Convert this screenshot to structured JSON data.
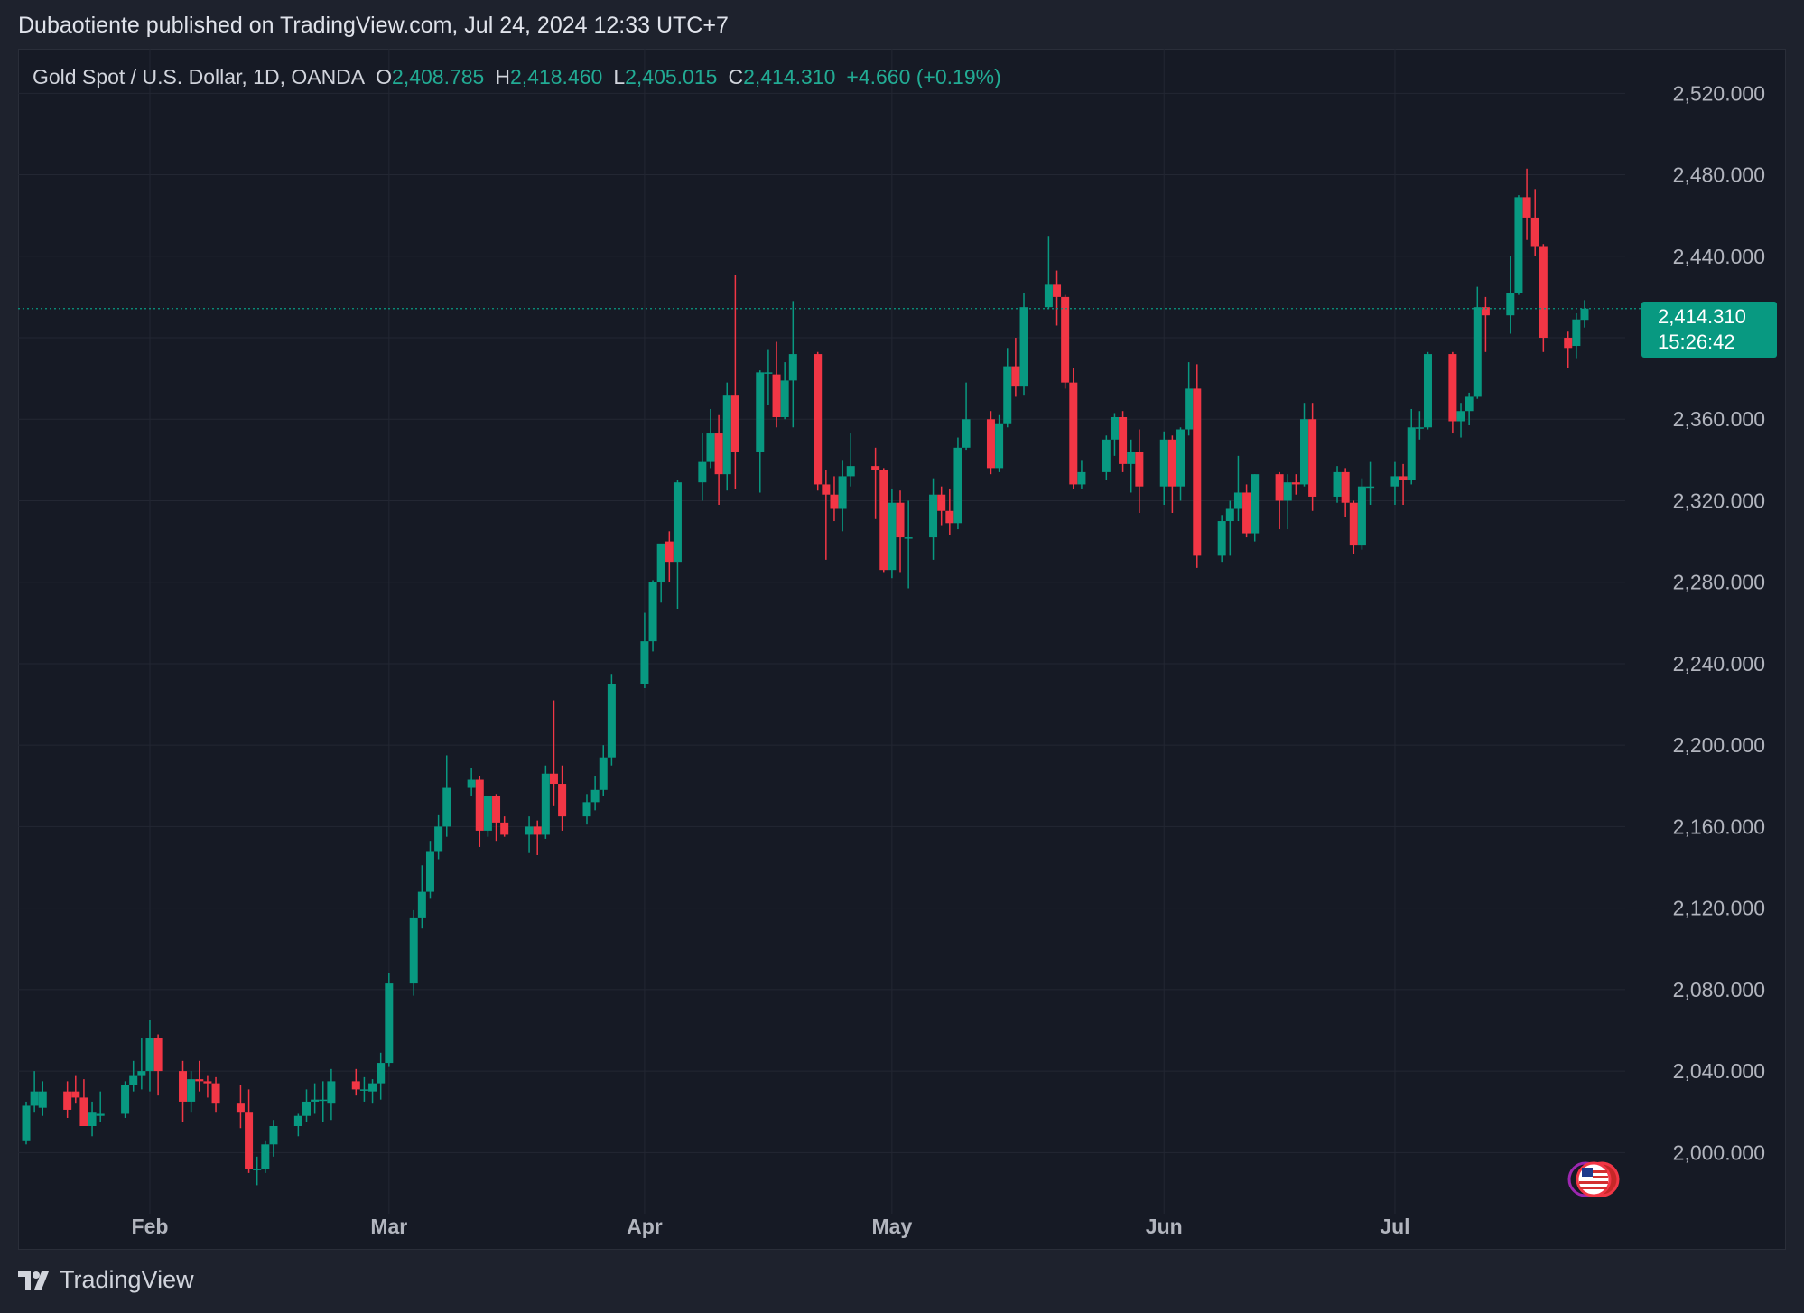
{
  "header": {
    "text": "Dubaotiente published on TradingView.com, Jul 24, 2024 12:33 UTC+7"
  },
  "legend": {
    "symbol": "Gold Spot / U.S. Dollar, 1D, OANDA",
    "o_label": "O",
    "o": "2,408.785",
    "h_label": "H",
    "h": "2,418.460",
    "l_label": "L",
    "l": "2,405.015",
    "c_label": "C",
    "c": "2,414.310",
    "change": "+4.660 (+0.19%)"
  },
  "last_price": {
    "value": "2,414.310",
    "countdown": "15:26:42"
  },
  "footer": {
    "brand": "TradingView"
  },
  "colors": {
    "up": "#089981",
    "down": "#f23645",
    "background": "#161a25",
    "grid": "#232733",
    "text": "#b2b5be"
  },
  "chart_data": {
    "type": "candlestick",
    "title": "Gold Spot / U.S. Dollar, 1D, OANDA",
    "ylim": [
      1970,
      2533
    ],
    "y_ticks": [
      "2,520.000",
      "2,480.000",
      "2,440.000",
      "2,400.000",
      "2,360.000",
      "2,320.000",
      "2,280.000",
      "2,240.000",
      "2,200.000",
      "2,160.000",
      "2,120.000",
      "2,080.000",
      "2,040.000",
      "2,000.000"
    ],
    "x_ticks": [
      {
        "label": "Feb",
        "date": "2024-02-01"
      },
      {
        "label": "Mar",
        "date": "2024-03-01"
      },
      {
        "label": "Apr",
        "date": "2024-04-01"
      },
      {
        "label": "May",
        "date": "2024-05-01"
      },
      {
        "label": "Jun",
        "date": "2024-06-03"
      },
      {
        "label": "Jul",
        "date": "2024-07-01"
      }
    ],
    "last_price": 2414.31,
    "candles": [
      {
        "date": "2024-01-17",
        "open": 2006,
        "high": 2025,
        "low": 2004,
        "close": 2023
      },
      {
        "date": "2024-01-18",
        "open": 2023,
        "high": 2040,
        "low": 2020,
        "close": 2030
      },
      {
        "date": "2024-01-19",
        "open": 2022,
        "high": 2035,
        "low": 2018,
        "close": 2030
      },
      {
        "date": "2024-01-22",
        "open": 2030,
        "high": 2035,
        "low": 2017,
        "close": 2021
      },
      {
        "date": "2024-01-23",
        "open": 2030,
        "high": 2038,
        "low": 2024,
        "close": 2027
      },
      {
        "date": "2024-01-24",
        "open": 2027,
        "high": 2036,
        "low": 2013,
        "close": 2013
      },
      {
        "date": "2024-01-25",
        "open": 2013,
        "high": 2025,
        "low": 2008,
        "close": 2020
      },
      {
        "date": "2024-01-26",
        "open": 2018,
        "high": 2030,
        "low": 2015,
        "close": 2019
      },
      {
        "date": "2024-01-29",
        "open": 2019,
        "high": 2035,
        "low": 2017,
        "close": 2033
      },
      {
        "date": "2024-01-30",
        "open": 2033,
        "high": 2045,
        "low": 2030,
        "close": 2038
      },
      {
        "date": "2024-01-31",
        "open": 2038,
        "high": 2056,
        "low": 2031,
        "close": 2040
      },
      {
        "date": "2024-02-01",
        "open": 2040,
        "high": 2065,
        "low": 2030,
        "close": 2056
      },
      {
        "date": "2024-02-02",
        "open": 2056,
        "high": 2058,
        "low": 2028,
        "close": 2040
      },
      {
        "date": "2024-02-05",
        "open": 2040,
        "high": 2045,
        "low": 2015,
        "close": 2025
      },
      {
        "date": "2024-02-06",
        "open": 2025,
        "high": 2040,
        "low": 2020,
        "close": 2036
      },
      {
        "date": "2024-02-07",
        "open": 2036,
        "high": 2045,
        "low": 2030,
        "close": 2035
      },
      {
        "date": "2024-02-08",
        "open": 2035,
        "high": 2038,
        "low": 2027,
        "close": 2034
      },
      {
        "date": "2024-02-09",
        "open": 2034,
        "high": 2037,
        "low": 2020,
        "close": 2024
      },
      {
        "date": "2024-02-12",
        "open": 2024,
        "high": 2033,
        "low": 2012,
        "close": 2020
      },
      {
        "date": "2024-02-13",
        "open": 2020,
        "high": 2031,
        "low": 1990,
        "close": 1992
      },
      {
        "date": "2024-02-14",
        "open": 1992,
        "high": 1998,
        "low": 1984,
        "close": 1992
      },
      {
        "date": "2024-02-15",
        "open": 1992,
        "high": 2006,
        "low": 1990,
        "close": 2004
      },
      {
        "date": "2024-02-16",
        "open": 2004,
        "high": 2016,
        "low": 1998,
        "close": 2013
      },
      {
        "date": "2024-02-19",
        "open": 2013,
        "high": 2019,
        "low": 2008,
        "close": 2018
      },
      {
        "date": "2024-02-20",
        "open": 2018,
        "high": 2031,
        "low": 2015,
        "close": 2025
      },
      {
        "date": "2024-02-21",
        "open": 2025,
        "high": 2034,
        "low": 2019,
        "close": 2026
      },
      {
        "date": "2024-02-22",
        "open": 2026,
        "high": 2035,
        "low": 2015,
        "close": 2026
      },
      {
        "date": "2024-02-23",
        "open": 2024,
        "high": 2041,
        "low": 2016,
        "close": 2035
      },
      {
        "date": "2024-02-26",
        "open": 2035,
        "high": 2041,
        "low": 2028,
        "close": 2031
      },
      {
        "date": "2024-02-27",
        "open": 2031,
        "high": 2037,
        "low": 2025,
        "close": 2031
      },
      {
        "date": "2024-02-28",
        "open": 2030,
        "high": 2036,
        "low": 2024,
        "close": 2034
      },
      {
        "date": "2024-02-29",
        "open": 2034,
        "high": 2049,
        "low": 2026,
        "close": 2044
      },
      {
        "date": "2024-03-01",
        "open": 2044,
        "high": 2088,
        "low": 2042,
        "close": 2083
      },
      {
        "date": "2024-03-04",
        "open": 2083,
        "high": 2119,
        "low": 2077,
        "close": 2115
      },
      {
        "date": "2024-03-05",
        "open": 2115,
        "high": 2141,
        "low": 2110,
        "close": 2128
      },
      {
        "date": "2024-03-06",
        "open": 2128,
        "high": 2153,
        "low": 2125,
        "close": 2148
      },
      {
        "date": "2024-03-07",
        "open": 2148,
        "high": 2166,
        "low": 2144,
        "close": 2160
      },
      {
        "date": "2024-03-08",
        "open": 2160,
        "high": 2195,
        "low": 2155,
        "close": 2179
      },
      {
        "date": "2024-03-11",
        "open": 2179,
        "high": 2189,
        "low": 2175,
        "close": 2183
      },
      {
        "date": "2024-03-12",
        "open": 2183,
        "high": 2185,
        "low": 2150,
        "close": 2158
      },
      {
        "date": "2024-03-13",
        "open": 2158,
        "high": 2175,
        "low": 2155,
        "close": 2175
      },
      {
        "date": "2024-03-14",
        "open": 2175,
        "high": 2176,
        "low": 2153,
        "close": 2162
      },
      {
        "date": "2024-03-15",
        "open": 2162,
        "high": 2165,
        "low": 2155,
        "close": 2156
      },
      {
        "date": "2024-03-18",
        "open": 2156,
        "high": 2165,
        "low": 2147,
        "close": 2160
      },
      {
        "date": "2024-03-19",
        "open": 2160,
        "high": 2163,
        "low": 2146,
        "close": 2156
      },
      {
        "date": "2024-03-20",
        "open": 2156,
        "high": 2190,
        "low": 2154,
        "close": 2186
      },
      {
        "date": "2024-03-21",
        "open": 2186,
        "high": 2222,
        "low": 2170,
        "close": 2181
      },
      {
        "date": "2024-03-22",
        "open": 2181,
        "high": 2190,
        "low": 2158,
        "close": 2165
      },
      {
        "date": "2024-03-25",
        "open": 2165,
        "high": 2176,
        "low": 2161,
        "close": 2172
      },
      {
        "date": "2024-03-26",
        "open": 2172,
        "high": 2185,
        "low": 2168,
        "close": 2178
      },
      {
        "date": "2024-03-27",
        "open": 2178,
        "high": 2200,
        "low": 2175,
        "close": 2194
      },
      {
        "date": "2024-03-28",
        "open": 2194,
        "high": 2235,
        "low": 2190,
        "close": 2230
      },
      {
        "date": "2024-04-01",
        "open": 2230,
        "high": 2265,
        "low": 2228,
        "close": 2251
      },
      {
        "date": "2024-04-02",
        "open": 2251,
        "high": 2281,
        "low": 2246,
        "close": 2280
      },
      {
        "date": "2024-04-03",
        "open": 2280,
        "high": 2295,
        "low": 2270,
        "close": 2299
      },
      {
        "date": "2024-04-04",
        "open": 2300,
        "high": 2305,
        "low": 2280,
        "close": 2290
      },
      {
        "date": "2024-04-05",
        "open": 2290,
        "high": 2330,
        "low": 2267,
        "close": 2329
      },
      {
        "date": "2024-04-08",
        "open": 2329,
        "high": 2353,
        "low": 2320,
        "close": 2339
      },
      {
        "date": "2024-04-09",
        "open": 2339,
        "high": 2365,
        "low": 2336,
        "close": 2353
      },
      {
        "date": "2024-04-10",
        "open": 2353,
        "high": 2362,
        "low": 2318,
        "close": 2333
      },
      {
        "date": "2024-04-11",
        "open": 2333,
        "high": 2378,
        "low": 2325,
        "close": 2372
      },
      {
        "date": "2024-04-12",
        "open": 2372,
        "high": 2431,
        "low": 2326,
        "close": 2344
      },
      {
        "date": "2024-04-15",
        "open": 2344,
        "high": 2384,
        "low": 2324,
        "close": 2383
      },
      {
        "date": "2024-04-16",
        "open": 2383,
        "high": 2394,
        "low": 2367,
        "close": 2383
      },
      {
        "date": "2024-04-17",
        "open": 2382,
        "high": 2398,
        "low": 2356,
        "close": 2361
      },
      {
        "date": "2024-04-18",
        "open": 2361,
        "high": 2388,
        "low": 2360,
        "close": 2379
      },
      {
        "date": "2024-04-19",
        "open": 2379,
        "high": 2418,
        "low": 2356,
        "close": 2392
      },
      {
        "date": "2024-04-22",
        "open": 2392,
        "high": 2393,
        "low": 2325,
        "close": 2328
      },
      {
        "date": "2024-04-23",
        "open": 2328,
        "high": 2335,
        "low": 2291,
        "close": 2323
      },
      {
        "date": "2024-04-24",
        "open": 2323,
        "high": 2332,
        "low": 2310,
        "close": 2316
      },
      {
        "date": "2024-04-25",
        "open": 2316,
        "high": 2340,
        "low": 2305,
        "close": 2332
      },
      {
        "date": "2024-04-26",
        "open": 2332,
        "high": 2353,
        "low": 2327,
        "close": 2337
      },
      {
        "date": "2024-04-29",
        "open": 2337,
        "high": 2346,
        "low": 2311,
        "close": 2335
      },
      {
        "date": "2024-04-30",
        "open": 2335,
        "high": 2336,
        "low": 2285,
        "close": 2286
      },
      {
        "date": "2024-05-01",
        "open": 2286,
        "high": 2326,
        "low": 2282,
        "close": 2319
      },
      {
        "date": "2024-05-02",
        "open": 2319,
        "high": 2325,
        "low": 2285,
        "close": 2302
      },
      {
        "date": "2024-05-03",
        "open": 2302,
        "high": 2320,
        "low": 2277,
        "close": 2302
      },
      {
        "date": "2024-05-06",
        "open": 2302,
        "high": 2331,
        "low": 2291,
        "close": 2323
      },
      {
        "date": "2024-05-07",
        "open": 2323,
        "high": 2327,
        "low": 2308,
        "close": 2315
      },
      {
        "date": "2024-05-08",
        "open": 2315,
        "high": 2326,
        "low": 2303,
        "close": 2309
      },
      {
        "date": "2024-05-09",
        "open": 2309,
        "high": 2351,
        "low": 2306,
        "close": 2346
      },
      {
        "date": "2024-05-10",
        "open": 2346,
        "high": 2378,
        "low": 2345,
        "close": 2360
      },
      {
        "date": "2024-05-13",
        "open": 2360,
        "high": 2364,
        "low": 2333,
        "close": 2336
      },
      {
        "date": "2024-05-14",
        "open": 2336,
        "high": 2362,
        "low": 2334,
        "close": 2358
      },
      {
        "date": "2024-05-15",
        "open": 2358,
        "high": 2395,
        "low": 2356,
        "close": 2386
      },
      {
        "date": "2024-05-16",
        "open": 2386,
        "high": 2400,
        "low": 2371,
        "close": 2376
      },
      {
        "date": "2024-05-17",
        "open": 2376,
        "high": 2422,
        "low": 2372,
        "close": 2415
      },
      {
        "date": "2024-05-20",
        "open": 2415,
        "high": 2450,
        "low": 2414,
        "close": 2426
      },
      {
        "date": "2024-05-21",
        "open": 2426,
        "high": 2433,
        "low": 2406,
        "close": 2420
      },
      {
        "date": "2024-05-22",
        "open": 2420,
        "high": 2421,
        "low": 2375,
        "close": 2378
      },
      {
        "date": "2024-05-23",
        "open": 2378,
        "high": 2385,
        "low": 2326,
        "close": 2328
      },
      {
        "date": "2024-05-24",
        "open": 2328,
        "high": 2340,
        "low": 2326,
        "close": 2334
      },
      {
        "date": "2024-05-27",
        "open": 2334,
        "high": 2352,
        "low": 2330,
        "close": 2350
      },
      {
        "date": "2024-05-28",
        "open": 2350,
        "high": 2363,
        "low": 2342,
        "close": 2361
      },
      {
        "date": "2024-05-29",
        "open": 2361,
        "high": 2364,
        "low": 2334,
        "close": 2338
      },
      {
        "date": "2024-05-30",
        "open": 2338,
        "high": 2350,
        "low": 2324,
        "close": 2344
      },
      {
        "date": "2024-05-31",
        "open": 2344,
        "high": 2355,
        "low": 2314,
        "close": 2327
      },
      {
        "date": "2024-06-03",
        "open": 2327,
        "high": 2354,
        "low": 2318,
        "close": 2350
      },
      {
        "date": "2024-06-04",
        "open": 2350,
        "high": 2352,
        "low": 2314,
        "close": 2327
      },
      {
        "date": "2024-06-05",
        "open": 2327,
        "high": 2356,
        "low": 2320,
        "close": 2355
      },
      {
        "date": "2024-06-06",
        "open": 2355,
        "high": 2388,
        "low": 2352,
        "close": 2375
      },
      {
        "date": "2024-06-07",
        "open": 2375,
        "high": 2387,
        "low": 2287,
        "close": 2293
      },
      {
        "date": "2024-06-10",
        "open": 2293,
        "high": 2313,
        "low": 2290,
        "close": 2310
      },
      {
        "date": "2024-06-11",
        "open": 2310,
        "high": 2320,
        "low": 2293,
        "close": 2316
      },
      {
        "date": "2024-06-12",
        "open": 2316,
        "high": 2342,
        "low": 2310,
        "close": 2324
      },
      {
        "date": "2024-06-13",
        "open": 2324,
        "high": 2328,
        "low": 2302,
        "close": 2304
      },
      {
        "date": "2024-06-14",
        "open": 2304,
        "high": 2333,
        "low": 2300,
        "close": 2333
      },
      {
        "date": "2024-06-17",
        "open": 2333,
        "high": 2334,
        "low": 2306,
        "close": 2320
      },
      {
        "date": "2024-06-18",
        "open": 2320,
        "high": 2333,
        "low": 2306,
        "close": 2329
      },
      {
        "date": "2024-06-19",
        "open": 2329,
        "high": 2333,
        "low": 2323,
        "close": 2328
      },
      {
        "date": "2024-06-20",
        "open": 2328,
        "high": 2368,
        "low": 2327,
        "close": 2360
      },
      {
        "date": "2024-06-21",
        "open": 2360,
        "high": 2368,
        "low": 2315,
        "close": 2322
      },
      {
        "date": "2024-06-24",
        "open": 2322,
        "high": 2337,
        "low": 2319,
        "close": 2334
      },
      {
        "date": "2024-06-25",
        "open": 2334,
        "high": 2336,
        "low": 2312,
        "close": 2319
      },
      {
        "date": "2024-06-26",
        "open": 2319,
        "high": 2320,
        "low": 2294,
        "close": 2298
      },
      {
        "date": "2024-06-27",
        "open": 2298,
        "high": 2331,
        "low": 2296,
        "close": 2327
      },
      {
        "date": "2024-06-28",
        "open": 2327,
        "high": 2339,
        "low": 2318,
        "close": 2327
      },
      {
        "date": "2024-07-01",
        "open": 2327,
        "high": 2339,
        "low": 2318,
        "close": 2332
      },
      {
        "date": "2024-07-02",
        "open": 2332,
        "high": 2338,
        "low": 2318,
        "close": 2330
      },
      {
        "date": "2024-07-03",
        "open": 2330,
        "high": 2365,
        "low": 2328,
        "close": 2356
      },
      {
        "date": "2024-07-04",
        "open": 2356,
        "high": 2364,
        "low": 2350,
        "close": 2356
      },
      {
        "date": "2024-07-05",
        "open": 2356,
        "high": 2393,
        "low": 2355,
        "close": 2392
      },
      {
        "date": "2024-07-08",
        "open": 2392,
        "high": 2393,
        "low": 2353,
        "close": 2359
      },
      {
        "date": "2024-07-09",
        "open": 2359,
        "high": 2368,
        "low": 2351,
        "close": 2364
      },
      {
        "date": "2024-07-10",
        "open": 2364,
        "high": 2373,
        "low": 2357,
        "close": 2371
      },
      {
        "date": "2024-07-11",
        "open": 2371,
        "high": 2425,
        "low": 2370,
        "close": 2415
      },
      {
        "date": "2024-07-12",
        "open": 2415,
        "high": 2420,
        "low": 2393,
        "close": 2411
      },
      {
        "date": "2024-07-15",
        "open": 2411,
        "high": 2440,
        "low": 2402,
        "close": 2422
      },
      {
        "date": "2024-07-16",
        "open": 2422,
        "high": 2470,
        "low": 2421,
        "close": 2469
      },
      {
        "date": "2024-07-17",
        "open": 2469,
        "high": 2483,
        "low": 2448,
        "close": 2459
      },
      {
        "date": "2024-07-18",
        "open": 2459,
        "high": 2473,
        "low": 2440,
        "close": 2445
      },
      {
        "date": "2024-07-19",
        "open": 2445,
        "high": 2446,
        "low": 2393,
        "close": 2400
      },
      {
        "date": "2024-07-22",
        "open": 2400,
        "high": 2403,
        "low": 2385,
        "close": 2395
      },
      {
        "date": "2024-07-23",
        "open": 2396,
        "high": 2412,
        "low": 2390,
        "close": 2409
      },
      {
        "date": "2024-07-24",
        "open": 2408.785,
        "high": 2418.46,
        "low": 2405.015,
        "close": 2414.31
      }
    ]
  }
}
